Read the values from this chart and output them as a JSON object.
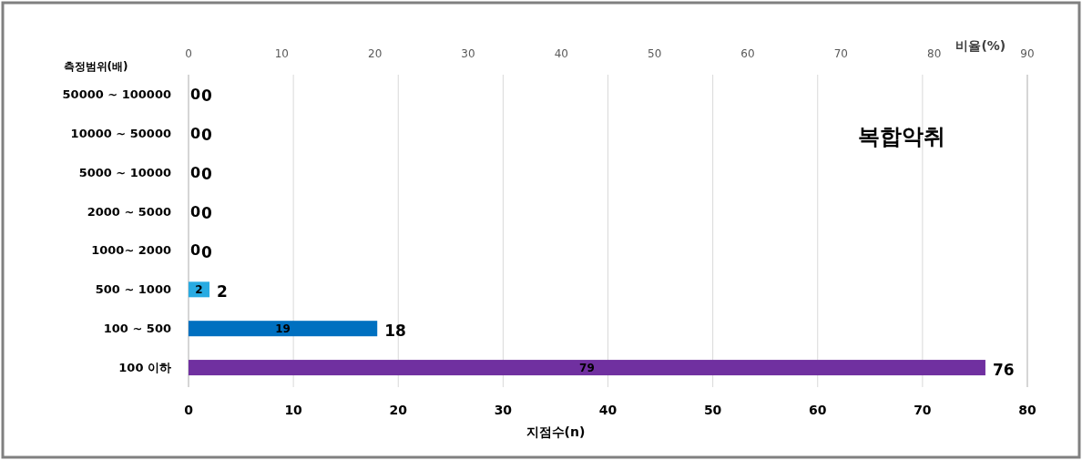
{
  "chart_data": {
    "type": "bar",
    "orientation": "horizontal",
    "title": "복합악취",
    "ylabel": "측정범위(배)",
    "xlabel": "지점수(n)",
    "x2label": "비율(%)",
    "categories": [
      "50000 ~ 100000",
      "10000 ~ 50000",
      "5000 ~ 10000",
      "2000 ~ 5000",
      "1000~ 2000",
      "500 ~ 1000",
      "100 ~ 500",
      "100 이하"
    ],
    "series": [
      {
        "colors": [
          "#29abe2",
          "#29abe2",
          "#29abe2",
          "#29abe2",
          "#29abe2",
          "#29abe2",
          "#0070c0",
          "#7030a0"
        ],
        "values": [
          0,
          0,
          0,
          0,
          0,
          2,
          18,
          76
        ]
      }
    ],
    "annotations": [
      "0",
      "0",
      "0",
      "0",
      "0",
      "2",
      "19",
      "79"
    ],
    "data_labels": true,
    "xlim": [
      0,
      80
    ],
    "xticks": [
      0,
      10,
      20,
      30,
      40,
      50,
      60,
      70,
      80
    ],
    "x2lim": [
      0,
      90
    ],
    "x2ticks": [
      0,
      10,
      20,
      30,
      40,
      50,
      60,
      70,
      80,
      90
    ],
    "grid": "x"
  }
}
